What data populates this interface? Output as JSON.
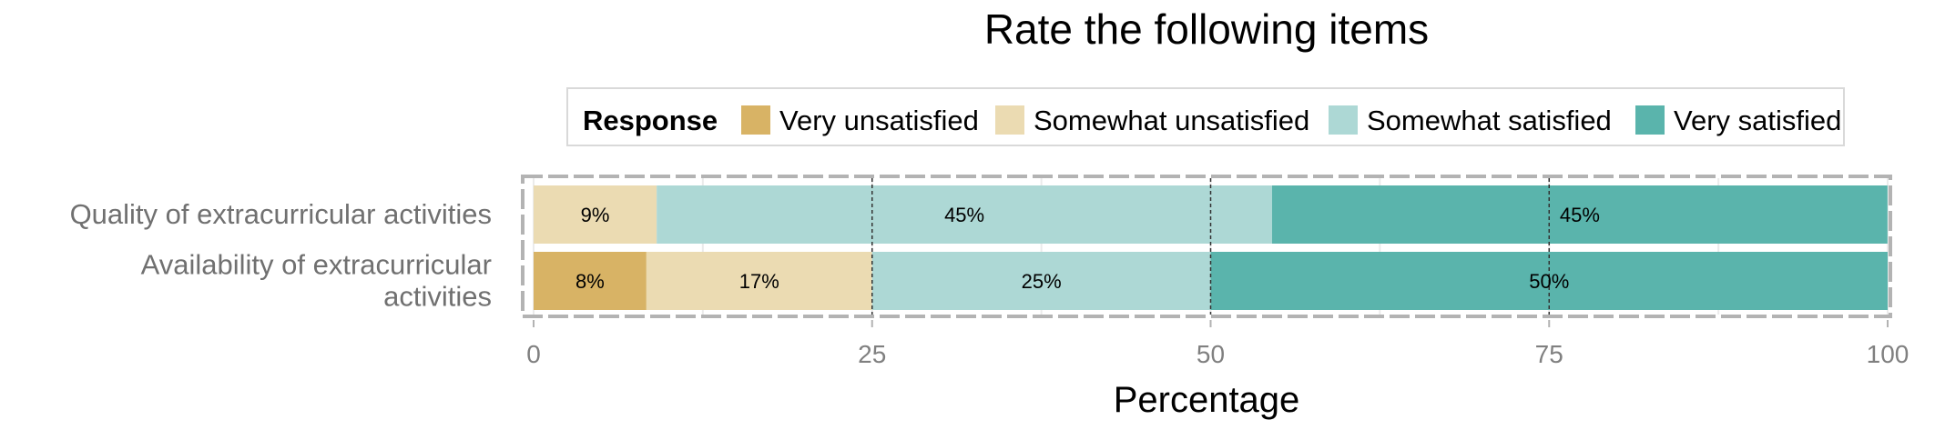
{
  "chart_data": {
    "type": "bar",
    "orientation": "horizontal",
    "stacked": true,
    "title": "Rate the following items",
    "xlabel": "Percentage",
    "ylabel": "",
    "xlim": [
      0,
      100
    ],
    "x_ticks": [
      0,
      25,
      50,
      75,
      100
    ],
    "grid": true,
    "legend_position": "top",
    "legend_title": "Response",
    "categories": [
      [
        "Quality of extracurricular activities"
      ],
      [
        "Availability of extracurricular",
        "activities"
      ]
    ],
    "series": [
      {
        "name": "Very unsatisfied",
        "color": "#D8B365",
        "values": [
          0,
          8.33
        ],
        "labels": [
          "",
          "8%"
        ]
      },
      {
        "name": "Somewhat unsatisfied",
        "color": "#EBDBB2",
        "values": [
          9.09,
          16.67
        ],
        "labels": [
          "9%",
          "17%"
        ]
      },
      {
        "name": "Somewhat satisfied",
        "color": "#ADD8D5",
        "values": [
          45.45,
          25
        ],
        "labels": [
          "45%",
          "25%"
        ]
      },
      {
        "name": "Very satisfied",
        "color": "#5AB4AC",
        "values": [
          45.45,
          50
        ],
        "labels": [
          "45%",
          "50%"
        ]
      }
    ]
  }
}
